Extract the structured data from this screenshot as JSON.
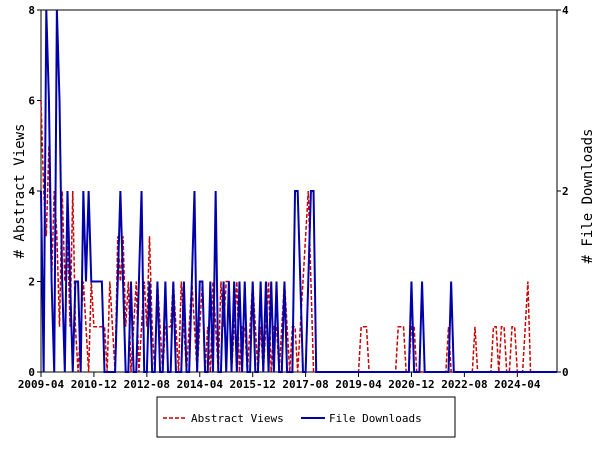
{
  "chart_data": {
    "type": "line",
    "y_label": "# Abstract Views",
    "y2_label": "# File Downloads",
    "x": [
      "2009-04",
      "2009-05",
      "2009-06",
      "2009-07",
      "2009-08",
      "2009-09",
      "2009-10",
      "2009-11",
      "2009-12",
      "2010-01",
      "2010-02",
      "2010-03",
      "2010-04",
      "2010-05",
      "2010-06",
      "2010-07",
      "2010-08",
      "2010-09",
      "2010-10",
      "2010-11",
      "2010-12",
      "2011-01",
      "2011-02",
      "2011-03",
      "2011-04",
      "2011-05",
      "2011-06",
      "2011-07",
      "2011-08",
      "2011-09",
      "2011-10",
      "2011-11",
      "2011-12",
      "2012-01",
      "2012-02",
      "2012-03",
      "2012-04",
      "2012-05",
      "2012-06",
      "2012-07",
      "2012-08",
      "2012-09",
      "2012-10",
      "2012-11",
      "2012-12",
      "2013-01",
      "2013-02",
      "2013-03",
      "2013-04",
      "2013-05",
      "2013-06",
      "2013-07",
      "2013-08",
      "2013-09",
      "2013-10",
      "2013-11",
      "2013-12",
      "2014-01",
      "2014-02",
      "2014-03",
      "2014-04",
      "2014-05",
      "2014-06",
      "2014-07",
      "2014-08",
      "2014-09",
      "2014-10",
      "2014-11",
      "2014-12",
      "2015-01",
      "2015-02",
      "2015-03",
      "2015-04",
      "2015-05",
      "2015-06",
      "2015-07",
      "2015-08",
      "2015-09",
      "2015-10",
      "2015-11",
      "2015-12",
      "2016-01",
      "2016-02",
      "2016-03",
      "2016-04",
      "2016-05",
      "2016-06",
      "2016-07",
      "2016-08",
      "2016-09",
      "2016-10",
      "2016-11",
      "2016-12",
      "2017-01",
      "2017-02",
      "2017-03",
      "2017-04",
      "2017-05",
      "2017-06",
      "2017-07",
      "2017-08",
      "2017-09",
      "2017-10",
      "2017-11",
      "2017-12",
      "2018-01",
      "2018-02",
      "2018-03",
      "2018-04",
      "2018-05",
      "2018-06",
      "2018-07",
      "2018-08",
      "2018-09",
      "2018-10",
      "2018-11",
      "2018-12",
      "2019-01",
      "2019-02",
      "2019-03",
      "2019-04",
      "2019-05",
      "2019-06",
      "2019-07",
      "2019-08",
      "2019-09",
      "2019-10",
      "2019-11",
      "2019-12",
      "2020-01",
      "2020-02",
      "2020-03",
      "2020-04",
      "2020-05",
      "2020-06",
      "2020-07",
      "2020-08",
      "2020-09",
      "2020-10",
      "2020-11",
      "2020-12",
      "2021-01",
      "2021-02",
      "2021-03",
      "2021-04",
      "2021-05",
      "2021-06",
      "2021-07",
      "2021-08",
      "2021-09",
      "2021-10",
      "2021-11",
      "2021-12",
      "2022-01",
      "2022-02",
      "2022-03",
      "2022-04",
      "2022-05",
      "2022-06",
      "2022-07",
      "2022-08",
      "2022-09",
      "2022-10",
      "2022-11",
      "2022-12",
      "2023-01",
      "2023-02",
      "2023-03",
      "2023-04",
      "2023-05",
      "2023-06",
      "2023-07",
      "2023-08",
      "2023-09",
      "2023-10",
      "2023-11",
      "2023-12",
      "2024-01",
      "2024-02",
      "2024-03",
      "2024-04",
      "2024-05",
      "2024-06",
      "2024-07",
      "2024-08",
      "2024-09",
      "2024-10",
      "2024-11",
      "2024-12",
      "2025-01",
      "2025-02",
      "2025-03",
      "2025-04",
      "2025-05",
      "2025-06",
      "2025-07"
    ],
    "series": [
      {
        "name": "Abstract Views",
        "color": "#cc0000",
        "dashed": true,
        "values": [
          6,
          4,
          3,
          5,
          2,
          4,
          3,
          1,
          4,
          2,
          3,
          1,
          4,
          1,
          0,
          1,
          2,
          1,
          0,
          2,
          1,
          1,
          1,
          1,
          1,
          0,
          2,
          1,
          0,
          3,
          2,
          3,
          1,
          2,
          0,
          1,
          2,
          0,
          1,
          2,
          1,
          3,
          1,
          0,
          2,
          1,
          0,
          1,
          1,
          1,
          2,
          1,
          0,
          2,
          1,
          0,
          1,
          2,
          1,
          0,
          1,
          2,
          0,
          1,
          0,
          2,
          1,
          0,
          2,
          1,
          2,
          2,
          0,
          1,
          2,
          0,
          1,
          1,
          0,
          1,
          2,
          1,
          0,
          1,
          0,
          1,
          2,
          0,
          1,
          1,
          0,
          1,
          2,
          1,
          0,
          1,
          1,
          0,
          1,
          2,
          3,
          4,
          2,
          0,
          0,
          0,
          0,
          0,
          0,
          0,
          0,
          0,
          0,
          0,
          0,
          0,
          0,
          0,
          0,
          0,
          0,
          1,
          1,
          1,
          0,
          0,
          0,
          0,
          0,
          0,
          0,
          0,
          0,
          0,
          0,
          1,
          1,
          1,
          0,
          0,
          1,
          1,
          0,
          0,
          0,
          0,
          0,
          0,
          0,
          0,
          0,
          0,
          0,
          0,
          1,
          0,
          0,
          0,
          0,
          0,
          0,
          0,
          0,
          0,
          1,
          0,
          0,
          0,
          0,
          0,
          0,
          1,
          1,
          0,
          1,
          1,
          0,
          0,
          1,
          1,
          0,
          0,
          0,
          1,
          2,
          0,
          0,
          0,
          0,
          0,
          0,
          0,
          0,
          0,
          0,
          0
        ]
      },
      {
        "name": "File Downloads",
        "color": "#0000aa",
        "axis": "y2",
        "values": [
          2,
          0,
          4,
          3,
          1,
          0,
          4,
          3,
          1,
          0,
          2,
          1,
          0,
          1,
          1,
          0,
          2,
          1,
          2,
          1,
          1,
          1,
          1,
          1,
          0,
          0,
          0,
          0,
          0,
          1,
          2,
          1,
          0,
          0,
          1,
          0,
          0,
          1,
          2,
          0,
          0,
          1,
          0,
          0,
          1,
          0,
          0,
          1,
          0,
          0,
          1,
          0,
          0,
          0,
          1,
          0,
          0,
          1,
          2,
          0,
          1,
          1,
          0,
          0,
          1,
          0,
          2,
          0,
          0,
          1,
          0,
          1,
          0,
          1,
          0,
          1,
          0,
          1,
          0,
          0,
          1,
          0,
          0,
          1,
          0,
          1,
          0,
          1,
          0,
          1,
          0,
          0,
          1,
          0,
          0,
          0,
          2,
          2,
          1,
          0,
          0,
          1,
          2,
          2,
          0,
          0,
          0,
          0,
          0,
          0,
          0,
          0,
          0,
          0,
          0,
          0,
          0,
          0,
          0,
          0,
          0,
          0,
          0,
          0,
          0,
          0,
          0,
          0,
          0,
          0,
          0,
          0,
          0,
          0,
          0,
          0,
          0,
          0,
          0,
          0,
          1,
          0,
          0,
          0,
          1,
          0,
          0,
          0,
          0,
          0,
          0,
          0,
          0,
          0,
          0,
          1,
          0,
          0,
          0,
          0,
          0,
          0,
          0,
          0,
          0,
          0,
          0,
          0,
          0,
          0,
          0,
          0,
          0,
          0,
          0,
          0,
          0,
          0,
          0,
          0,
          0,
          0,
          0,
          0,
          0,
          0,
          0,
          0,
          0,
          0,
          0,
          0,
          0,
          0,
          0,
          0
        ]
      }
    ],
    "xlim": [
      "2009-04",
      "2025-07"
    ],
    "xticks": [
      "2009-04",
      "2010-12",
      "2012-08",
      "2014-04",
      "2015-12",
      "2017-08",
      "2019-04",
      "2020-12",
      "2022-08",
      "2024-04"
    ],
    "ylim": [
      0,
      8
    ],
    "yticks": [
      0,
      2,
      4,
      6,
      8
    ],
    "y2lim": [
      0,
      4
    ],
    "y2ticks": [
      0,
      2,
      4
    ]
  }
}
